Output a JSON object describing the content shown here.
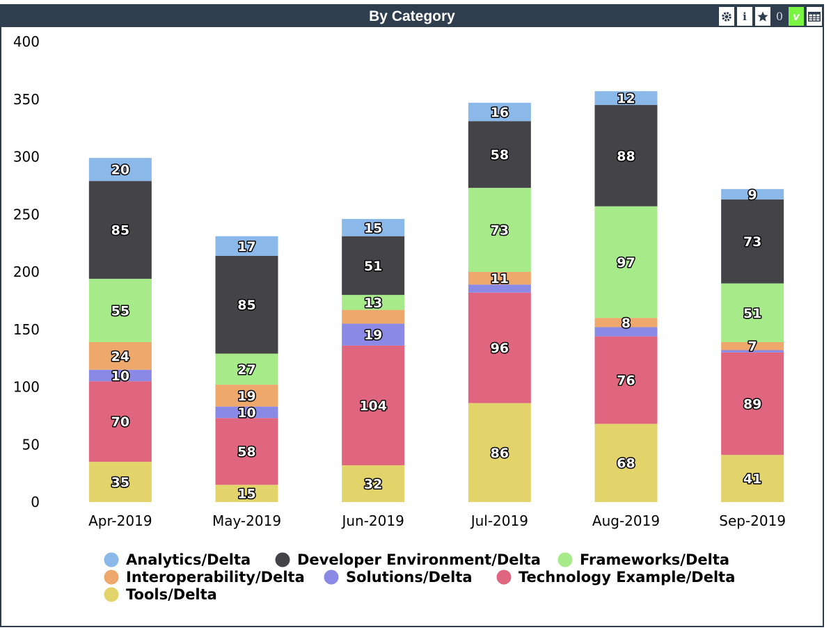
{
  "panel": {
    "title": "By Category",
    "toolbar": {
      "settings_icon": "gear-icon",
      "info_label": "i",
      "star_icon": "star-icon",
      "star_count": "0",
      "v_label": "v",
      "table_icon": "table-icon"
    }
  },
  "chart_data": {
    "type": "bar",
    "stacked": true,
    "categories": [
      "Apr-2019",
      "May-2019",
      "Jun-2019",
      "Jul-2019",
      "Aug-2019",
      "Sep-2019"
    ],
    "ylim": [
      0,
      400
    ],
    "yticks": [
      0,
      50,
      100,
      150,
      200,
      250,
      300,
      350,
      400
    ],
    "legend_position": "bottom",
    "series": [
      {
        "name": "Tools/Delta",
        "color": "#e2d36b",
        "values": [
          35,
          15,
          32,
          86,
          68,
          41
        ]
      },
      {
        "name": "Technology Example/Delta",
        "color": "#e0657f",
        "values": [
          70,
          58,
          104,
          96,
          76,
          89
        ]
      },
      {
        "name": "Solutions/Delta",
        "color": "#8a8ae6",
        "values": [
          10,
          10,
          19,
          7,
          8,
          2
        ]
      },
      {
        "name": "Interoperability/Delta",
        "color": "#eea86c",
        "values": [
          24,
          19,
          12,
          11,
          8,
          7
        ]
      },
      {
        "name": "Frameworks/Delta",
        "color": "#a6ea89",
        "values": [
          55,
          27,
          13,
          73,
          97,
          51
        ]
      },
      {
        "name": "Developer Environment/Delta",
        "color": "#434348",
        "values": [
          85,
          85,
          51,
          58,
          88,
          73
        ]
      },
      {
        "name": "Analytics/Delta",
        "color": "#8ab9e9",
        "values": [
          20,
          17,
          15,
          16,
          12,
          9
        ]
      }
    ],
    "data_labels": [
      {
        "series": 0,
        "labels": [
          "35",
          "15",
          "32",
          "86",
          "68",
          "41"
        ]
      },
      {
        "series": 1,
        "labels": [
          "70",
          "58",
          "104",
          "96",
          "76",
          "89"
        ]
      },
      {
        "series": 2,
        "labels": [
          "10",
          "10",
          "19",
          "",
          "",
          ""
        ]
      },
      {
        "series": 3,
        "labels": [
          "24",
          "19",
          "",
          "11",
          "8",
          "7"
        ]
      },
      {
        "series": 4,
        "labels": [
          "55",
          "27",
          "13",
          "73",
          "97",
          "51"
        ]
      },
      {
        "series": 5,
        "labels": [
          "85",
          "85",
          "51",
          "58",
          "88",
          "73"
        ]
      },
      {
        "series": 6,
        "labels": [
          "20",
          "17",
          "15",
          "16",
          "12",
          "9"
        ]
      }
    ],
    "legend_order": [
      "Analytics/Delta",
      "Developer Environment/Delta",
      "Frameworks/Delta",
      "Interoperability/Delta",
      "Solutions/Delta",
      "Technology Example/Delta",
      "Tools/Delta"
    ]
  }
}
